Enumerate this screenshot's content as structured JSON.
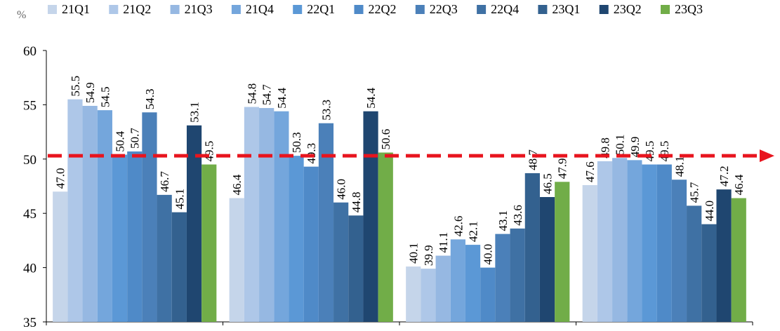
{
  "chart_data": {
    "type": "bar",
    "unit_label": "%",
    "title": "",
    "xlabel": "",
    "ylabel": "",
    "ylim": [
      35,
      60
    ],
    "yticks": [
      35,
      40,
      45,
      50,
      55,
      60
    ],
    "grid": false,
    "legend_placement": "top",
    "group_count": 4,
    "series": [
      {
        "name": "21Q1",
        "color": "#c5d5ea",
        "values": [
          47.0,
          46.4,
          40.1,
          47.6
        ]
      },
      {
        "name": "21Q2",
        "color": "#aec7e8",
        "values": [
          55.5,
          54.8,
          39.9,
          49.8
        ]
      },
      {
        "name": "21Q3",
        "color": "#96b8e2",
        "values": [
          54.9,
          54.7,
          41.1,
          50.1
        ]
      },
      {
        "name": "21Q4",
        "color": "#74a6dc",
        "values": [
          54.5,
          54.4,
          42.6,
          49.9
        ]
      },
      {
        "name": "22Q1",
        "color": "#5b98d6",
        "values": [
          50.4,
          50.3,
          42.1,
          49.5
        ]
      },
      {
        "name": "22Q2",
        "color": "#4f8ac8",
        "values": [
          50.7,
          49.3,
          40.0,
          49.5
        ]
      },
      {
        "name": "22Q3",
        "color": "#4b80b9",
        "values": [
          54.3,
          53.3,
          43.1,
          48.1
        ]
      },
      {
        "name": "22Q4",
        "color": "#3f71a4",
        "values": [
          46.7,
          46.0,
          43.6,
          45.7
        ]
      },
      {
        "name": "23Q1",
        "color": "#33618f",
        "values": [
          45.1,
          44.8,
          48.7,
          44.0
        ]
      },
      {
        "name": "23Q2",
        "color": "#1f4670",
        "values": [
          53.1,
          54.4,
          46.5,
          47.2
        ]
      },
      {
        "name": "23Q3",
        "color": "#71ad48",
        "values": [
          49.5,
          50.6,
          47.9,
          46.4
        ]
      }
    ],
    "reference_line": {
      "value": 50.3,
      "color": "#e8141e",
      "style": "dashed"
    }
  }
}
